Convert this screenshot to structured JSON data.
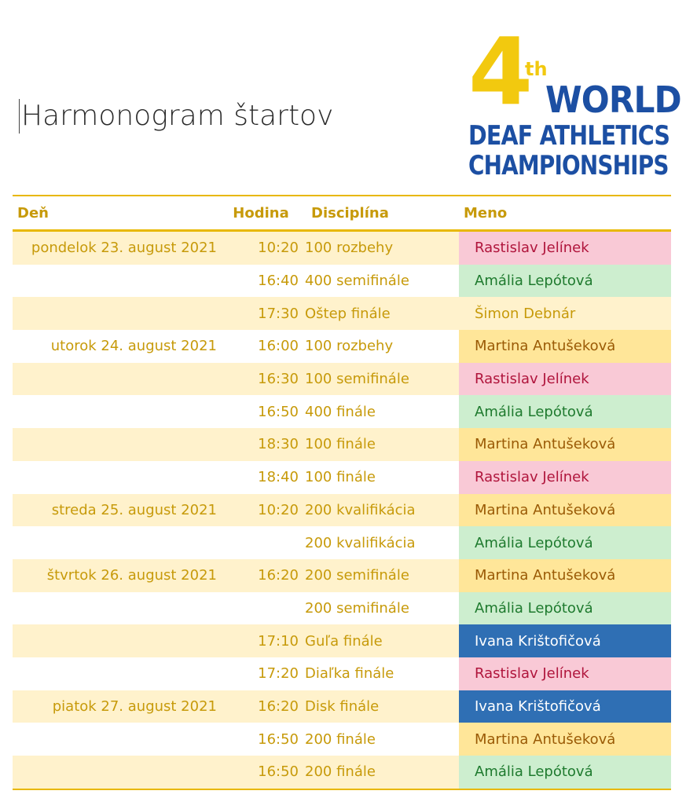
{
  "title": "Harmonogram štartov",
  "logo": {
    "number": "4",
    "superscript": "th",
    "line1": "WORLD",
    "line2": "DEAF ATHLETICS",
    "line3": "CHAMPIONSHIPS"
  },
  "colors": {
    "gold": "#e8b800",
    "pink": "#f9c9d6",
    "green": "#cdeecf",
    "yellow": "#ffe699",
    "blue": "#2f6fb4"
  },
  "headers": {
    "day": "Deň",
    "time": "Hodina",
    "discipline": "Disciplína",
    "name": "Meno"
  },
  "rows": [
    {
      "day": "pondelok 23. august 2021",
      "time": "10:20",
      "discipline": "100 rozbehy",
      "name": "Rastislav Jelínek",
      "color": "pink"
    },
    {
      "day": "",
      "time": "16:40",
      "discipline": "400 semifinále",
      "name": "Amália Lepótová",
      "color": "green"
    },
    {
      "day": "",
      "time": "17:30",
      "discipline": "Oštep finále",
      "name": "Šimon Debnár",
      "color": "none"
    },
    {
      "day": "utorok 24. august 2021",
      "time": "16:00",
      "discipline": "100 rozbehy",
      "name": "Martina Antušeková",
      "color": "yellow"
    },
    {
      "day": "",
      "time": "16:30",
      "discipline": "100 semifinále",
      "name": "Rastislav Jelínek",
      "color": "pink"
    },
    {
      "day": "",
      "time": "16:50",
      "discipline": "400 finále",
      "name": "Amália Lepótová",
      "color": "green"
    },
    {
      "day": "",
      "time": "18:30",
      "discipline": "100 finále",
      "name": "Martina Antušeková",
      "color": "yellow"
    },
    {
      "day": "",
      "time": "18:40",
      "discipline": "100 finále",
      "name": "Rastislav Jelínek",
      "color": "pink"
    },
    {
      "day": "streda 25. august 2021",
      "time": "10:20",
      "discipline": "200 kvalifikácia",
      "name": "Martina Antušeková",
      "color": "yellow"
    },
    {
      "day": "",
      "time": "",
      "discipline": "200 kvalifikácia",
      "name": "Amália Lepótová",
      "color": "green"
    },
    {
      "day": "štvrtok 26. august 2021",
      "time": "16:20",
      "discipline": "200 semifinále",
      "name": "Martina Antušeková",
      "color": "yellow"
    },
    {
      "day": "",
      "time": "",
      "discipline": "200 semifinále",
      "name": "Amália Lepótová",
      "color": "green"
    },
    {
      "day": "",
      "time": "17:10",
      "discipline": "Guľa finále",
      "name": "Ivana Krištofičová",
      "color": "blue"
    },
    {
      "day": "",
      "time": "17:20",
      "discipline": "Diaľka finále",
      "name": "Rastislav Jelínek",
      "color": "pink"
    },
    {
      "day": "piatok 27. august 2021",
      "time": "16:20",
      "discipline": "Disk finále",
      "name": "Ivana Krištofičová",
      "color": "blue"
    },
    {
      "day": "",
      "time": "16:50",
      "discipline": "200 finále",
      "name": "Martina Antušeková",
      "color": "yellow"
    },
    {
      "day": "",
      "time": "16:50",
      "discipline": "200 finále",
      "name": "Amália Lepótová",
      "color": "green"
    }
  ]
}
